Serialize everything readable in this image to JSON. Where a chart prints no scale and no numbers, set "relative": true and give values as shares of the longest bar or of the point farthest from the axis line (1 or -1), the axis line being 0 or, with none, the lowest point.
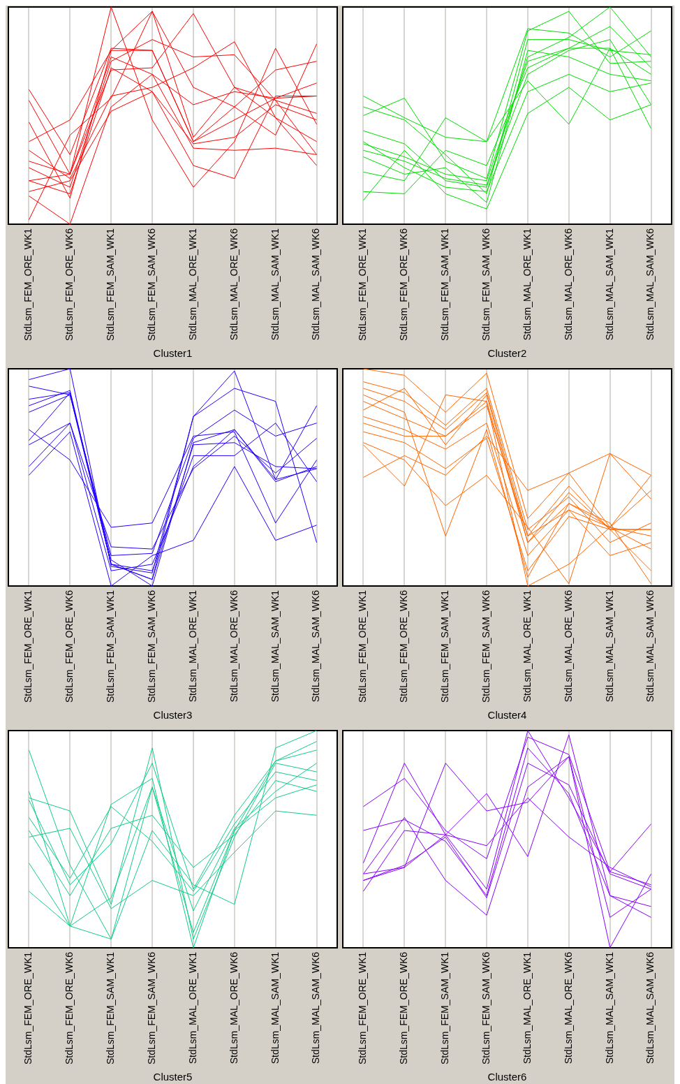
{
  "chart_data": [
    {
      "type": "line",
      "title": "Cluster1",
      "relative": true,
      "grid": "x",
      "marker": "none",
      "categories": [
        "StdLsm_FEM_ORE_WK1",
        "StdLsm_FEM_ORE_WK6",
        "StdLsm_FEM_SAM_WK1",
        "StdLsm_FEM_SAM_WK6",
        "StdLsm_MAL_ORE_WK1",
        "StdLsm_MAL_ORE_WK6",
        "StdLsm_MAL_SAM_WK1",
        "StdLsm_MAL_SAM_WK6"
      ],
      "series": [
        {
          "color": "#ff0000",
          "values": [
            0.62,
            0.32,
            0.81,
            0.8,
            0.38,
            0.48,
            0.58,
            0.65
          ]
        },
        {
          "color": "#ff0000",
          "values": [
            0.57,
            0.23,
            1.0,
            0.48,
            0.17,
            0.38,
            0.81,
            0.46
          ]
        },
        {
          "color": "#ff0000",
          "values": [
            0.47,
            0.12,
            0.8,
            0.98,
            0.4,
            0.63,
            0.57,
            0.51
          ]
        },
        {
          "color": "#ff0000",
          "values": [
            0.38,
            0.48,
            0.8,
            0.8,
            0.38,
            0.54,
            0.71,
            0.75
          ]
        },
        {
          "color": "#ff0000",
          "values": [
            0.34,
            0.21,
            0.59,
            0.63,
            0.72,
            0.84,
            0.49,
            0.27
          ]
        },
        {
          "color": "#ff0000",
          "values": [
            0.26,
            0.17,
            0.75,
            0.85,
            0.77,
            0.78,
            0.57,
            0.32
          ]
        },
        {
          "color": "#ff0000",
          "values": [
            0.2,
            0.23,
            0.71,
            0.72,
            0.97,
            0.63,
            0.49,
            0.38
          ]
        },
        {
          "color": "#ff0000",
          "values": [
            0.15,
            0.2,
            0.52,
            0.61,
            0.27,
            0.21,
            0.59,
            0.59
          ]
        },
        {
          "color": "#ff0000",
          "values": [
            0.02,
            0.41,
            0.58,
            0.98,
            0.63,
            0.54,
            0.41,
            0.83
          ]
        },
        {
          "color": "#ff0000",
          "values": [
            0.13,
            0.0,
            0.54,
            0.69,
            0.35,
            0.34,
            0.35,
            0.32
          ]
        },
        {
          "color": "#ff0000",
          "values": [
            0.29,
            0.23,
            0.77,
            0.69,
            0.55,
            0.61,
            0.58,
            0.59
          ]
        },
        {
          "color": "#ff0000",
          "values": [
            0.2,
            0.14,
            0.72,
            0.61,
            0.37,
            0.4,
            0.55,
            0.48
          ]
        }
      ]
    },
    {
      "type": "line",
      "title": "Cluster2",
      "relative": true,
      "grid": "x",
      "marker": "none",
      "categories": [
        "StdLsm_FEM_ORE_WK1",
        "StdLsm_FEM_ORE_WK6",
        "StdLsm_FEM_SAM_WK1",
        "StdLsm_FEM_SAM_WK6",
        "StdLsm_MAL_ORE_WK1",
        "StdLsm_MAL_ORE_WK6",
        "StdLsm_MAL_SAM_WK1",
        "StdLsm_MAL_SAM_WK6"
      ],
      "series": [
        {
          "color": "#00dd00",
          "values": [
            0.59,
            0.49,
            0.4,
            0.38,
            0.9,
            0.88,
            0.77,
            0.89
          ]
        },
        {
          "color": "#00dd00",
          "values": [
            0.5,
            0.58,
            0.29,
            0.21,
            0.89,
            0.98,
            0.74,
            0.75
          ]
        },
        {
          "color": "#00dd00",
          "values": [
            0.43,
            0.37,
            0.2,
            0.17,
            0.77,
            0.86,
            1.0,
            0.77
          ]
        },
        {
          "color": "#00dd00",
          "values": [
            0.37,
            0.31,
            0.23,
            0.2,
            0.75,
            0.81,
            0.81,
            0.69
          ]
        },
        {
          "color": "#00dd00",
          "values": [
            0.34,
            0.29,
            0.21,
            0.18,
            0.69,
            0.8,
            0.85,
            0.55
          ]
        },
        {
          "color": "#00dd00",
          "values": [
            0.24,
            0.2,
            0.49,
            0.38,
            0.66,
            0.46,
            0.81,
            0.44
          ]
        },
        {
          "color": "#00dd00",
          "values": [
            0.11,
            0.34,
            0.14,
            0.07,
            0.51,
            0.63,
            0.48,
            0.55
          ]
        },
        {
          "color": "#00dd00",
          "values": [
            0.15,
            0.14,
            0.34,
            0.27,
            0.72,
            0.81,
            0.91,
            0.72
          ]
        },
        {
          "color": "#00dd00",
          "values": [
            0.54,
            0.48,
            0.32,
            0.14,
            0.85,
            0.85,
            0.8,
            0.78
          ]
        },
        {
          "color": "#00dd00",
          "values": [
            0.38,
            0.26,
            0.17,
            0.15,
            0.61,
            0.69,
            0.61,
            0.65
          ]
        },
        {
          "color": "#00dd00",
          "values": [
            0.31,
            0.23,
            0.26,
            0.1,
            0.8,
            0.77,
            0.69,
            0.66
          ]
        }
      ]
    },
    {
      "type": "line",
      "title": "Cluster3",
      "relative": true,
      "grid": "x",
      "marker": "none",
      "categories": [
        "StdLsm_FEM_ORE_WK1",
        "StdLsm_FEM_ORE_WK6",
        "StdLsm_FEM_SAM_WK1",
        "StdLsm_FEM_SAM_WK6",
        "StdLsm_MAL_ORE_WK1",
        "StdLsm_MAL_ORE_WK6",
        "StdLsm_MAL_SAM_WK1",
        "StdLsm_MAL_SAM_WK6"
      ],
      "series": [
        {
          "color": "#2200ff",
          "values": [
            0.95,
            1.0,
            0.09,
            0.06,
            0.78,
            0.99,
            0.49,
            0.83
          ]
        },
        {
          "color": "#2200ff",
          "values": [
            0.86,
            0.89,
            0.1,
            0.03,
            0.78,
            0.91,
            0.85,
            0.2
          ]
        },
        {
          "color": "#2200ff",
          "values": [
            0.8,
            0.88,
            0.14,
            0.15,
            0.68,
            0.81,
            0.69,
            0.75
          ]
        },
        {
          "color": "#2200ff",
          "values": [
            0.72,
            0.58,
            0.27,
            0.29,
            0.69,
            0.71,
            0.29,
            0.58
          ]
        },
        {
          "color": "#2200ff",
          "values": [
            0.65,
            0.75,
            0.07,
            0.1,
            0.55,
            0.72,
            0.49,
            0.54
          ]
        },
        {
          "color": "#2200ff",
          "values": [
            0.51,
            0.71,
            0.0,
            0.14,
            0.21,
            0.55,
            0.21,
            0.28
          ]
        },
        {
          "color": "#2200ff",
          "values": [
            0.92,
            0.88,
            0.1,
            0.03,
            0.65,
            0.66,
            0.55,
            0.54
          ]
        },
        {
          "color": "#2200ff",
          "values": [
            0.55,
            0.75,
            0.18,
            0.17,
            0.54,
            0.69,
            0.52,
            0.68
          ]
        },
        {
          "color": "#2200ff",
          "values": [
            0.83,
            0.9,
            0.1,
            0.07,
            0.6,
            0.6,
            0.75,
            0.48
          ]
        },
        {
          "color": "#2200ff",
          "values": [
            0.67,
            0.89,
            0.12,
            0.0,
            0.66,
            0.72,
            0.48,
            0.55
          ]
        }
      ]
    },
    {
      "type": "line",
      "title": "Cluster4",
      "relative": true,
      "grid": "x",
      "marker": "none",
      "categories": [
        "StdLsm_FEM_ORE_WK1",
        "StdLsm_FEM_ORE_WK6",
        "StdLsm_FEM_SAM_WK1",
        "StdLsm_FEM_SAM_WK6",
        "StdLsm_MAL_ORE_WK1",
        "StdLsm_MAL_ORE_WK6",
        "StdLsm_MAL_SAM_WK1",
        "StdLsm_MAL_SAM_WK6"
      ],
      "series": [
        {
          "color": "#ff6600",
          "values": [
            1.0,
            0.97,
            0.8,
            0.98,
            0.31,
            0.52,
            0.61,
            0.51
          ]
        },
        {
          "color": "#ff6600",
          "values": [
            0.91,
            0.85,
            0.72,
            0.89,
            0.23,
            0.46,
            0.26,
            0.26
          ]
        },
        {
          "color": "#ff6600",
          "values": [
            0.85,
            0.77,
            0.69,
            0.85,
            0.2,
            0.38,
            0.27,
            0.23
          ]
        },
        {
          "color": "#ff6600",
          "values": [
            0.78,
            0.72,
            0.63,
            0.75,
            0.14,
            0.35,
            0.27,
            0.17
          ]
        },
        {
          "color": "#ff6600",
          "values": [
            0.71,
            0.66,
            0.54,
            0.68,
            0.07,
            0.32,
            0.26,
            0.07
          ]
        },
        {
          "color": "#ff6600",
          "values": [
            0.65,
            0.46,
            0.88,
            0.85,
            0.0,
            0.1,
            0.27,
            0.44
          ]
        },
        {
          "color": "#ff6600",
          "values": [
            0.5,
            0.6,
            0.51,
            0.69,
            0.44,
            0.52,
            0.27,
            0.51
          ]
        },
        {
          "color": "#ff6600",
          "values": [
            0.66,
            0.58,
            0.37,
            0.51,
            0.27,
            0.01,
            0.61,
            0.4
          ]
        },
        {
          "color": "#ff6600",
          "values": [
            0.88,
            0.8,
            0.23,
            0.72,
            0.04,
            0.38,
            0.29,
            0.01
          ]
        },
        {
          "color": "#ff6600",
          "values": [
            0.81,
            0.91,
            0.65,
            0.88,
            0.2,
            0.43,
            0.26,
            0.26
          ]
        },
        {
          "color": "#ff6600",
          "values": [
            0.75,
            0.69,
            0.69,
            0.83,
            0.23,
            0.35,
            0.14,
            0.2
          ]
        },
        {
          "color": "#ff6600",
          "values": [
            0.94,
            0.89,
            0.74,
            0.91,
            0.26,
            0.41,
            0.2,
            0.29
          ]
        }
      ]
    },
    {
      "type": "line",
      "title": "Cluster5",
      "relative": true,
      "grid": "x",
      "marker": "none",
      "categories": [
        "StdLsm_FEM_ORE_WK1",
        "StdLsm_FEM_ORE_WK6",
        "StdLsm_FEM_SAM_WK1",
        "StdLsm_FEM_SAM_WK6",
        "StdLsm_MAL_ORE_WK1",
        "StdLsm_MAL_ORE_WK6",
        "StdLsm_MAL_SAM_WK1",
        "StdLsm_MAL_SAM_WK6"
      ],
      "series": [
        {
          "color": "#11cc88",
          "values": [
            0.91,
            0.38,
            0.04,
            0.54,
            0.29,
            0.2,
            0.92,
            1.0
          ]
        },
        {
          "color": "#11cc88",
          "values": [
            0.72,
            0.1,
            0.66,
            0.78,
            0.0,
            0.54,
            0.86,
            0.91
          ]
        },
        {
          "color": "#11cc88",
          "values": [
            0.69,
            0.63,
            0.2,
            0.92,
            0.04,
            0.51,
            0.85,
            0.81
          ]
        },
        {
          "color": "#11cc88",
          "values": [
            0.6,
            0.32,
            0.65,
            0.49,
            0.26,
            0.57,
            0.81,
            0.77
          ]
        },
        {
          "color": "#11cc88",
          "values": [
            0.54,
            0.24,
            0.55,
            0.61,
            0.37,
            0.52,
            0.77,
            0.72
          ]
        },
        {
          "color": "#11cc88",
          "values": [
            0.51,
            0.55,
            0.18,
            0.31,
            0.24,
            0.44,
            0.63,
            0.61
          ]
        },
        {
          "color": "#11cc88",
          "values": [
            0.39,
            0.1,
            0.04,
            0.74,
            0.17,
            0.55,
            0.72,
            0.85
          ]
        },
        {
          "color": "#11cc88",
          "values": [
            0.26,
            0.1,
            0.23,
            0.74,
            0.07,
            0.54,
            0.69,
            0.75
          ]
        },
        {
          "color": "#11cc88",
          "values": [
            0.68,
            0.29,
            0.48,
            0.85,
            0.27,
            0.61,
            0.86,
            0.95
          ]
        }
      ]
    },
    {
      "type": "line",
      "title": "Cluster6",
      "relative": true,
      "grid": "x",
      "marker": "none",
      "categories": [
        "StdLsm_FEM_ORE_WK1",
        "StdLsm_FEM_ORE_WK6",
        "StdLsm_FEM_SAM_WK1",
        "StdLsm_FEM_SAM_WK6",
        "StdLsm_MAL_ORE_WK1",
        "StdLsm_MAL_ORE_WK6",
        "StdLsm_MAL_SAM_WK1",
        "StdLsm_MAL_SAM_WK6"
      ],
      "series": [
        {
          "color": "#8800ff",
          "values": [
            0.65,
            0.78,
            0.54,
            0.41,
            0.97,
            0.89,
            0.35,
            0.57
          ]
        },
        {
          "color": "#8800ff",
          "values": [
            0.39,
            0.85,
            0.52,
            0.27,
            1.0,
            0.69,
            0.35,
            0.29
          ]
        },
        {
          "color": "#8800ff",
          "values": [
            0.34,
            0.6,
            0.31,
            0.15,
            0.74,
            0.88,
            0.0,
            0.34
          ]
        },
        {
          "color": "#8800ff",
          "values": [
            0.26,
            0.54,
            0.52,
            0.47,
            0.69,
            0.51,
            0.37,
            0.28
          ]
        },
        {
          "color": "#8800ff",
          "values": [
            0.54,
            0.59,
            0.49,
            0.24,
            0.92,
            0.71,
            0.24,
            0.19
          ]
        },
        {
          "color": "#8800ff",
          "values": [
            0.31,
            0.37,
            0.85,
            0.63,
            0.67,
            0.88,
            0.14,
            0.27
          ]
        },
        {
          "color": "#8800ff",
          "values": [
            0.34,
            0.37,
            0.52,
            0.71,
            0.42,
            0.98,
            0.24,
            0.14
          ]
        },
        {
          "color": "#8800ff",
          "values": [
            0.31,
            0.38,
            0.51,
            0.23,
            0.85,
            0.75,
            0.34,
            0.27
          ]
        }
      ]
    }
  ]
}
